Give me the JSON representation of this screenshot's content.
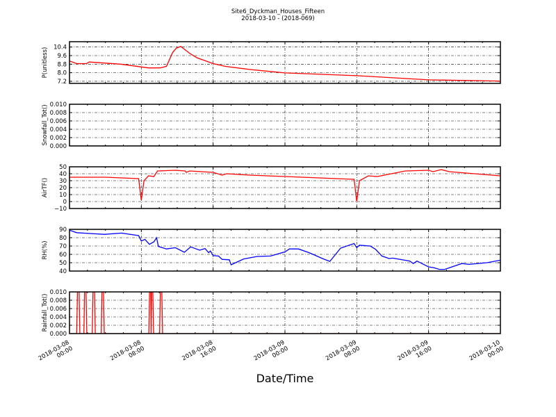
{
  "chart_data": {
    "type": "line",
    "title": "Site6_Dyckman_Houses_Fifteen",
    "subtitle": "2018-03-10 - (2018-069)",
    "xlabel": "Date/Time",
    "x_units": "hours since 2018-03-08 00:00",
    "xlim": [
      0,
      48
    ],
    "grid": true,
    "xticks": [
      {
        "x": 0,
        "date": "2018-03-08",
        "time": "00:00"
      },
      {
        "x": 8,
        "date": "2018-03-08",
        "time": "08:00"
      },
      {
        "x": 16,
        "date": "2018-03-08",
        "time": "16:00"
      },
      {
        "x": 24,
        "date": "2018-03-09",
        "time": "00:00"
      },
      {
        "x": 32,
        "date": "2018-03-09",
        "time": "08:00"
      },
      {
        "x": 40,
        "date": "2018-03-09",
        "time": "16:00"
      },
      {
        "x": 48,
        "date": "2018-03-10",
        "time": "00:00"
      }
    ],
    "panels": [
      {
        "ylabel": "P(unitless)",
        "color": "#ff0000",
        "ylim": [
          7.0,
          10.9
        ],
        "yticks": [
          "7.2",
          "8.0",
          "8.8",
          "9.6",
          "10.4"
        ],
        "x": [
          0,
          0.8,
          1.9,
          2.2,
          5.7,
          8.8,
          10.1,
          10.8,
          11.5,
          11.9,
          12.4,
          13.4,
          14.2,
          16,
          17.3,
          19.4,
          20.1,
          24,
          32,
          40,
          48
        ],
        "y": [
          9.1,
          8.85,
          8.85,
          9.0,
          8.8,
          8.45,
          8.45,
          8.6,
          9.9,
          10.3,
          10.45,
          9.8,
          9.4,
          8.85,
          8.6,
          8.38,
          8.3,
          7.98,
          7.72,
          7.33,
          7.22
        ]
      },
      {
        "ylabel": "Snowfall_Tot()",
        "color": "#008000",
        "ylim": [
          0,
          0.01
        ],
        "yticks": [
          "0.000",
          "0.002",
          "0.004",
          "0.006",
          "0.008",
          "0.010"
        ],
        "x": [
          0,
          48
        ],
        "y": [
          0,
          0
        ]
      },
      {
        "ylabel": "AirTF()",
        "color": "#ff0000",
        "ylim": [
          -10,
          50
        ],
        "yticks": [
          "−10",
          "0",
          "10",
          "20",
          "30",
          "40",
          "50"
        ],
        "x": [
          0,
          4,
          7.7,
          8,
          8.3,
          8.8,
          9.4,
          9.8,
          11.8,
          12.9,
          13.0,
          13.4,
          16,
          17,
          17.5,
          20.1,
          24,
          31.7,
          32,
          32.3,
          33.3,
          34.3,
          37.4,
          40,
          40.5,
          41.4,
          42.3,
          48
        ],
        "y": [
          35,
          35,
          33,
          2,
          30,
          37,
          36,
          44,
          45,
          44,
          42,
          44,
          42,
          38,
          40,
          38,
          36,
          32,
          0,
          30,
          37,
          36,
          44,
          45,
          43,
          46,
          43,
          37
        ]
      },
      {
        "ylabel": "RH(%)",
        "color": "#0000ff",
        "ylim": [
          40,
          90
        ],
        "yticks": [
          "40",
          "50",
          "60",
          "70",
          "80",
          "90"
        ],
        "x": [
          0,
          0.8,
          2.3,
          3.9,
          5.8,
          7.7,
          8,
          8.4,
          8.9,
          9.4,
          9.7,
          9.9,
          10.8,
          11.8,
          12.8,
          13.5,
          14.5,
          15.1,
          15.5,
          15.7,
          16,
          16.6,
          17,
          17.8,
          18.0,
          18.6,
          19.4,
          20.9,
          22.4,
          24,
          24.5,
          25.5,
          26.7,
          28.3,
          29,
          30.2,
          31.7,
          32,
          32.3,
          33.5,
          34.1,
          34.8,
          35.6,
          36,
          37.9,
          38.3,
          38.7,
          40,
          40.6,
          41.2,
          41.8,
          42.6,
          43.7,
          44.5,
          46.5,
          48
        ],
        "y": [
          89,
          86,
          85,
          84,
          85.5,
          82.5,
          76,
          78,
          72,
          75,
          80,
          69.5,
          66.5,
          68,
          62.5,
          69,
          65,
          67,
          62,
          64,
          58.5,
          58,
          54,
          53.5,
          47.5,
          50.5,
          54.5,
          57.5,
          58,
          63,
          66.5,
          66.5,
          62,
          54.5,
          51.6,
          67.5,
          73,
          68,
          71,
          70,
          66,
          58,
          55,
          55.5,
          52,
          49,
          52,
          45,
          44,
          42,
          42,
          45,
          49,
          48,
          50,
          53
        ]
      },
      {
        "ylabel": "Rainfall_Tot()",
        "color": "#ff0000",
        "ylim": [
          0,
          0.01
        ],
        "yticks": [
          "0.000",
          "0.002",
          "0.004",
          "0.006",
          "0.008",
          "0.010"
        ],
        "x": [
          0,
          0.8,
          0.98,
          1.15,
          1.6,
          1.76,
          1.93,
          2.53,
          2.7,
          2.87,
          3.53,
          3.7,
          3.87,
          8.83,
          9.0,
          9.1,
          9.2,
          9.37,
          10.03,
          10.2,
          10.37,
          48
        ],
        "y": [
          0,
          0,
          0.02,
          0,
          0,
          0.02,
          0,
          0,
          0.02,
          0,
          0,
          0.02,
          0,
          0,
          0.02,
          0,
          0.02,
          0,
          0,
          0.02,
          0,
          0
        ]
      }
    ]
  }
}
